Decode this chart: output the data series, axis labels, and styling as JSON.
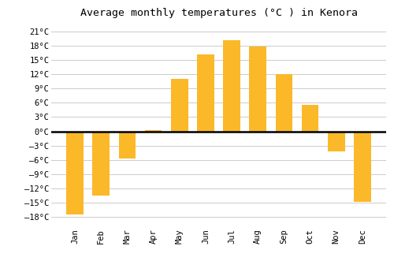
{
  "title": "Average monthly temperatures (°C ) in Kenora",
  "months": [
    "Jan",
    "Feb",
    "Mar",
    "Apr",
    "May",
    "Jun",
    "Jul",
    "Aug",
    "Sep",
    "Oct",
    "Nov",
    "Dec"
  ],
  "values": [
    -17.5,
    -13.5,
    -5.8,
    0.3,
    11.0,
    16.2,
    19.2,
    17.9,
    12.0,
    5.5,
    -4.2,
    -14.8
  ],
  "bar_color": "#FBB829",
  "background_color": "#FFFFFF",
  "grid_color": "#CCCCCC",
  "yticks": [
    -18,
    -15,
    -12,
    -9,
    -6,
    -3,
    0,
    3,
    6,
    9,
    12,
    15,
    18,
    21
  ],
  "ylim": [
    -20,
    23
  ],
  "zero_line_color": "#000000",
  "title_fontsize": 9.5,
  "tick_fontsize": 7.5
}
